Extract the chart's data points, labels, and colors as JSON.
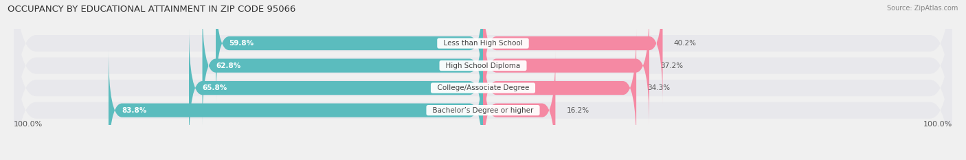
{
  "title": "OCCUPANCY BY EDUCATIONAL ATTAINMENT IN ZIP CODE 95066",
  "source": "Source: ZipAtlas.com",
  "categories": [
    "Less than High School",
    "High School Diploma",
    "College/Associate Degree",
    "Bachelor’s Degree or higher"
  ],
  "owner_pct": [
    59.8,
    62.8,
    65.8,
    83.8
  ],
  "renter_pct": [
    40.2,
    37.2,
    34.3,
    16.2
  ],
  "owner_color": "#5bbcbe",
  "renter_color": "#f589a3",
  "bg_color": "#f0f0f0",
  "row_bg_color": "#e8e8ec",
  "bar_height": 0.62,
  "axis_label_left": "100.0%",
  "axis_label_right": "100.0%"
}
